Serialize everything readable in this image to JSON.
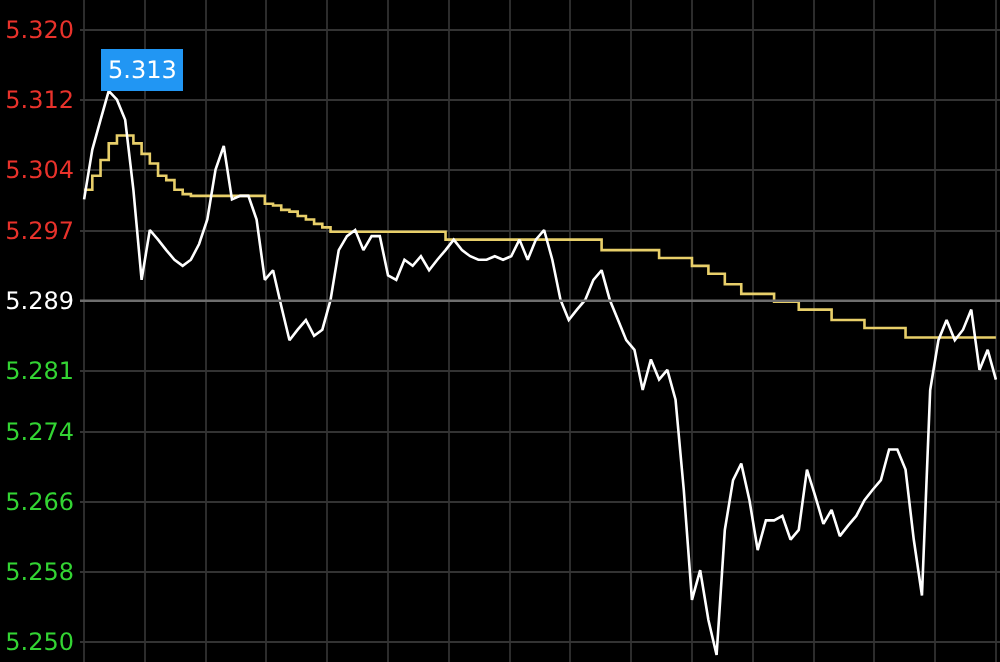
{
  "chart_data": {
    "type": "line",
    "categories": [
      null,
      null,
      null,
      null,
      null,
      null,
      null,
      null,
      null,
      null,
      null,
      null,
      null,
      null,
      null,
      null,
      null,
      null,
      null,
      null,
      null,
      null,
      null,
      null,
      null,
      null,
      null,
      null,
      null,
      null,
      null,
      null,
      null,
      null,
      null,
      null,
      null,
      null,
      null,
      null,
      null,
      null,
      null,
      null,
      null,
      null,
      null,
      null,
      null,
      null,
      null,
      null,
      null,
      null,
      null,
      null,
      null,
      null,
      null,
      null,
      null,
      null,
      null,
      null,
      null,
      null,
      null,
      null,
      null,
      null,
      null,
      null,
      null,
      null,
      null,
      null,
      null,
      null,
      null,
      null,
      null,
      null,
      null,
      null,
      null,
      null,
      null,
      null,
      null,
      null,
      null,
      null,
      null,
      null,
      null,
      null,
      null,
      null,
      null,
      null,
      null,
      null,
      null,
      null,
      null,
      null,
      null,
      null,
      null,
      null,
      null,
      null
    ],
    "series": [
      {
        "color": "#e8cf6a",
        "type": "step",
        "values": [
          5.3017,
          5.3033,
          5.3051,
          5.307,
          5.3079,
          5.3079,
          5.307,
          5.3058,
          5.3047,
          5.3033,
          5.3028,
          5.3017,
          5.3012,
          5.301,
          5.301,
          5.301,
          5.301,
          5.301,
          5.301,
          5.301,
          5.301,
          5.301,
          5.3001,
          5.2999,
          5.2994,
          5.2992,
          5.2987,
          5.2983,
          5.2978,
          5.2974,
          5.2969,
          5.2969,
          5.2969,
          5.2969,
          5.2969,
          5.2969,
          5.2969,
          5.2969,
          5.2969,
          5.2969,
          5.2969,
          5.2969,
          5.2969,
          5.2969,
          5.296,
          5.296,
          5.296,
          5.296,
          5.296,
          5.296,
          5.296,
          5.296,
          5.296,
          5.296,
          5.296,
          5.296,
          5.296,
          5.296,
          5.296,
          5.296,
          5.296,
          5.296,
          5.296,
          5.2948,
          5.2948,
          5.2948,
          5.2948,
          5.2948,
          5.2948,
          5.2948,
          5.2939,
          5.2939,
          5.2939,
          5.2939,
          5.293,
          5.293,
          5.2921,
          5.2921,
          5.2909,
          5.2909,
          5.2898,
          5.2898,
          5.2898,
          5.2898,
          5.2889,
          5.2889,
          5.2889,
          5.288,
          5.288,
          5.288,
          5.288,
          5.2868,
          5.2868,
          5.2868,
          5.2868,
          5.2859,
          5.2859,
          5.2859,
          5.2859,
          5.2859,
          5.2848,
          5.2848,
          5.2848,
          5.2848,
          5.2848,
          5.2848,
          5.2848,
          5.2848,
          5.2848,
          5.2848,
          5.2848,
          5.2848
        ]
      },
      {
        "color": "#ffffff",
        "values": [
          5.3006,
          5.3063,
          5.3097,
          5.313,
          5.312,
          5.3097,
          5.3017,
          5.2914,
          5.2971,
          5.296,
          5.2948,
          5.2937,
          5.293,
          5.2937,
          5.2955,
          5.2983,
          5.304,
          5.3067,
          5.3006,
          5.301,
          5.301,
          5.2983,
          5.2914,
          5.2925,
          5.2884,
          5.2845,
          5.2857,
          5.2868,
          5.285,
          5.2857,
          5.2891,
          5.2948,
          5.2964,
          5.2971,
          5.2948,
          5.2964,
          5.2964,
          5.2919,
          5.2914,
          5.2937,
          5.293,
          5.2941,
          5.2925,
          5.2937,
          5.2948,
          5.296,
          5.2948,
          5.2941,
          5.2937,
          5.2937,
          5.2941,
          5.2937,
          5.2941,
          5.296,
          5.2937,
          5.296,
          5.2971,
          5.2937,
          5.2891,
          5.2868,
          5.288,
          5.2891,
          5.2914,
          5.2925,
          5.2891,
          5.2868,
          5.2845,
          5.2834,
          5.2788,
          5.2823,
          5.28,
          5.2811,
          5.2777,
          5.2674,
          5.2548,
          5.2582,
          5.2525,
          5.2485,
          5.2628,
          5.2685,
          5.2704,
          5.2662,
          5.2605,
          5.2639,
          5.2639,
          5.2644,
          5.2617,
          5.2628,
          5.2697,
          5.2667,
          5.2635,
          5.2651,
          5.2621,
          5.2633,
          5.2644,
          5.2662,
          5.2674,
          5.2685,
          5.272,
          5.272,
          5.2697,
          5.2617,
          5.2553,
          5.2788,
          5.2845,
          5.2868,
          5.2845,
          5.2857,
          5.288,
          5.2811,
          5.2834,
          5.28
        ]
      }
    ],
    "ylim": [
      5.2477,
      5.3234
    ],
    "yticks": [
      {
        "value": 5.25,
        "label": "5.250"
      },
      {
        "value": 5.258,
        "label": "5.258"
      },
      {
        "value": 5.266,
        "label": "5.266"
      },
      {
        "value": 5.274,
        "label": "5.274"
      },
      {
        "value": 5.281,
        "label": "5.281"
      },
      {
        "value": 5.289,
        "label": "5.289"
      },
      {
        "value": 5.297,
        "label": "5.297"
      },
      {
        "value": 5.304,
        "label": "5.304"
      },
      {
        "value": 5.312,
        "label": "5.312"
      },
      {
        "value": 5.32,
        "label": "5.320"
      }
    ],
    "ref_lines": [
      {
        "axis": "y",
        "value": 5.289,
        "color": "#6e6e6e"
      }
    ],
    "annotations": [
      "5.313"
    ],
    "grid": true,
    "marker": "none",
    "tick_labels": "y"
  }
}
